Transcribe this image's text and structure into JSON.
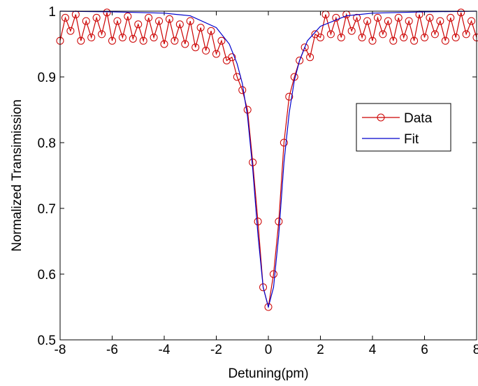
{
  "chart_data": {
    "type": "line",
    "xlabel": "Detuning(pm)",
    "ylabel": "Normalized Transimission",
    "xlim": [
      -8,
      8
    ],
    "xticks": [
      -8,
      -6,
      -4,
      -2,
      0,
      2,
      4,
      6,
      8
    ],
    "ylim": [
      0.5,
      1
    ],
    "yticks": [
      0.5,
      0.6,
      0.7,
      0.8,
      0.9,
      1
    ],
    "legend": "right",
    "series": [
      {
        "name": "Data",
        "color": "#cc0000",
        "marker": "circle",
        "x": [
          -8,
          -7.8,
          -7.6,
          -7.4,
          -7.2,
          -7,
          -6.8,
          -6.6,
          -6.4,
          -6.2,
          -6,
          -5.8,
          -5.6,
          -5.4,
          -5.2,
          -5,
          -4.8,
          -4.6,
          -4.4,
          -4.2,
          -4,
          -3.8,
          -3.6,
          -3.4,
          -3.2,
          -3,
          -2.8,
          -2.6,
          -2.4,
          -2.2,
          -2,
          -1.8,
          -1.6,
          -1.4,
          -1.2,
          -1,
          -0.8,
          -0.6,
          -0.4,
          -0.2,
          0,
          0.2,
          0.4,
          0.6,
          0.8,
          1,
          1.2,
          1.4,
          1.6,
          1.8,
          2,
          2.2,
          2.4,
          2.6,
          2.8,
          3,
          3.2,
          3.4,
          3.6,
          3.8,
          4,
          4.2,
          4.4,
          4.6,
          4.8,
          5,
          5.2,
          5.4,
          5.6,
          5.8,
          6,
          6.2,
          6.4,
          6.6,
          6.8,
          7,
          7.2,
          7.4,
          7.6,
          7.8,
          8
        ],
        "values": [
          0.955,
          0.99,
          0.97,
          0.995,
          0.955,
          0.985,
          0.96,
          0.99,
          0.965,
          0.998,
          0.955,
          0.985,
          0.96,
          0.992,
          0.958,
          0.98,
          0.955,
          0.99,
          0.96,
          0.985,
          0.95,
          0.988,
          0.955,
          0.98,
          0.95,
          0.985,
          0.945,
          0.975,
          0.94,
          0.97,
          0.935,
          0.955,
          0.925,
          0.93,
          0.9,
          0.88,
          0.85,
          0.77,
          0.68,
          0.58,
          0.55,
          0.6,
          0.68,
          0.8,
          0.87,
          0.9,
          0.925,
          0.945,
          0.93,
          0.965,
          0.96,
          0.995,
          0.965,
          0.99,
          0.96,
          0.995,
          0.97,
          0.99,
          0.96,
          0.985,
          0.955,
          0.99,
          0.965,
          0.985,
          0.955,
          0.99,
          0.96,
          0.985,
          0.955,
          0.995,
          0.96,
          0.99,
          0.965,
          0.985,
          0.955,
          0.99,
          0.96,
          0.998,
          0.965,
          0.985,
          0.96
        ]
      },
      {
        "name": "Fit",
        "color": "#0000cc",
        "x": [
          -8,
          -6,
          -4,
          -3,
          -2,
          -1.5,
          -1.2,
          -1,
          -0.8,
          -0.6,
          -0.4,
          -0.2,
          0,
          0.2,
          0.4,
          0.6,
          0.8,
          1,
          1.2,
          1.5,
          2,
          3,
          4,
          6,
          8
        ],
        "values": [
          1,
          0.999,
          0.997,
          0.993,
          0.975,
          0.95,
          0.92,
          0.89,
          0.84,
          0.76,
          0.66,
          0.58,
          0.55,
          0.58,
          0.66,
          0.77,
          0.845,
          0.895,
          0.925,
          0.955,
          0.977,
          0.993,
          0.997,
          0.999,
          1
        ]
      }
    ]
  }
}
